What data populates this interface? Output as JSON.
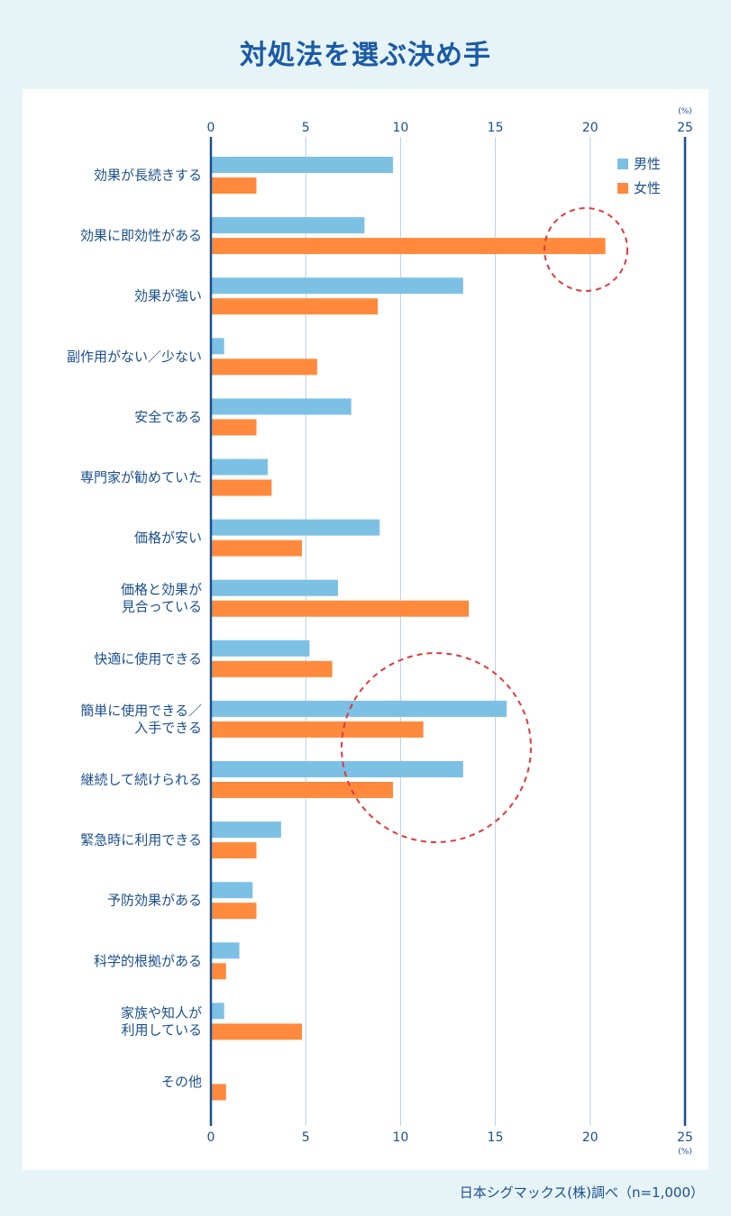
{
  "title": "対処法を選ぶ決め手",
  "source": "日本シグマックス(株)調べ（n=1,000）",
  "chart_data": {
    "type": "bar",
    "orientation": "horizontal",
    "unit": "(%)",
    "xlim": [
      0,
      25
    ],
    "ticks": [
      0,
      5,
      10,
      15,
      20,
      25
    ],
    "grid": true,
    "legend_position": "top-right",
    "categories": [
      [
        "効果が長続きする"
      ],
      [
        "効果に即効性がある"
      ],
      [
        "効果が強い"
      ],
      [
        "副作用がない／少ない"
      ],
      [
        "安全である"
      ],
      [
        "専門家が勧めていた"
      ],
      [
        "価格が安い"
      ],
      [
        "価格と効果が",
        "見合っている"
      ],
      [
        "快適に使用できる"
      ],
      [
        "簡単に使用できる／",
        "入手できる"
      ],
      [
        "継続して続けられる"
      ],
      [
        "緊急時に利用できる"
      ],
      [
        "予防効果がある"
      ],
      [
        "科学的根拠がある"
      ],
      [
        "家族や知人が",
        "利用している"
      ],
      [
        "その他"
      ]
    ],
    "series": [
      {
        "name": "男性",
        "color": "#7cc1e4",
        "values": [
          9.6,
          8.1,
          13.3,
          0.7,
          7.4,
          3.0,
          8.9,
          6.7,
          5.2,
          15.6,
          13.3,
          3.7,
          2.2,
          1.5,
          0.7,
          0
        ]
      },
      {
        "name": "女性",
        "color": "#ff8a3d",
        "values": [
          2.4,
          20.8,
          8.8,
          5.6,
          2.4,
          3.2,
          4.8,
          13.6,
          6.4,
          11.2,
          9.6,
          2.4,
          2.4,
          0.8,
          4.8,
          0.8
        ]
      }
    ],
    "axis_color": "#1b4f8c",
    "grid_color": "#b8cde0",
    "highlight_color": "#e0393e"
  }
}
